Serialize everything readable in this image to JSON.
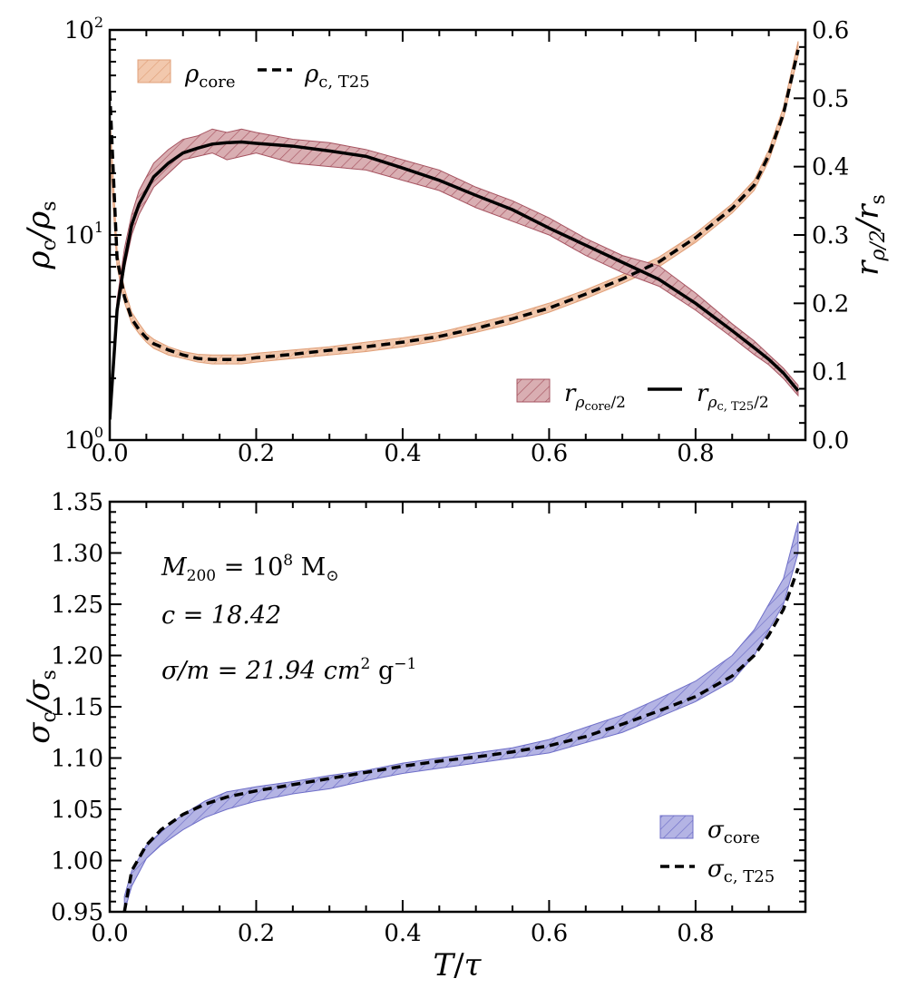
{
  "chart_data": [
    {
      "type": "line",
      "panel": "top",
      "xlim": [
        0.0,
        0.95
      ],
      "x_ticks": [
        "0.0",
        "0.2",
        "0.4",
        "0.6",
        "0.8"
      ],
      "left_axis": {
        "label": "ρc/ρs",
        "scale": "log",
        "ylim": [
          1,
          100
        ],
        "tick_labels": [
          "10^0",
          "10^1",
          "10^2"
        ]
      },
      "right_axis": {
        "label": "rρ/2/rs",
        "ylim": [
          0.0,
          0.6
        ],
        "tick_labels": [
          "0.0",
          "0.1",
          "0.2",
          "0.3",
          "0.4",
          "0.5",
          "0.6"
        ]
      },
      "x": [
        0.0,
        0.01,
        0.02,
        0.03,
        0.04,
        0.05,
        0.06,
        0.08,
        0.1,
        0.12,
        0.14,
        0.16,
        0.18,
        0.2,
        0.25,
        0.3,
        0.35,
        0.4,
        0.45,
        0.5,
        0.55,
        0.6,
        0.65,
        0.7,
        0.75,
        0.8,
        0.85,
        0.88,
        0.9,
        0.92,
        0.94
      ],
      "series": [
        {
          "name": "ρcore",
          "axis": "left",
          "style": "hatched band",
          "color": "#e8a679",
          "lower": [
            25.0,
            7.0,
            4.7,
            3.7,
            3.3,
            3.0,
            2.8,
            2.6,
            2.5,
            2.4,
            2.35,
            2.35,
            2.35,
            2.4,
            2.5,
            2.6,
            2.7,
            2.85,
            3.05,
            3.35,
            3.7,
            4.2,
            4.9,
            5.8,
            7.0,
            9.2,
            12.8,
            16.5,
            23.0,
            37.0,
            75.0
          ],
          "upper": [
            40.0,
            8.4,
            5.5,
            4.2,
            3.7,
            3.3,
            3.1,
            2.85,
            2.7,
            2.62,
            2.6,
            2.6,
            2.6,
            2.65,
            2.75,
            2.85,
            3.0,
            3.15,
            3.35,
            3.7,
            4.1,
            4.65,
            5.4,
            6.4,
            7.8,
            10.2,
            14.2,
            18.5,
            26.0,
            42.0,
            88.0
          ]
        },
        {
          "name": "ρc, T25",
          "axis": "left",
          "style": "dashed",
          "color": "#000000",
          "values": [
            50.0,
            7.7,
            5.0,
            3.9,
            3.45,
            3.15,
            2.95,
            2.75,
            2.6,
            2.5,
            2.47,
            2.47,
            2.47,
            2.52,
            2.62,
            2.74,
            2.85,
            3.0,
            3.2,
            3.5,
            3.9,
            4.4,
            5.15,
            6.1,
            7.4,
            9.7,
            13.5,
            17.5,
            24.5,
            39.0,
            80.0
          ]
        },
        {
          "name": "rρcore/2",
          "axis": "right",
          "style": "hatched band",
          "color": "#a65461",
          "lower": [
            0.03,
            0.18,
            0.25,
            0.3,
            0.33,
            0.35,
            0.37,
            0.39,
            0.41,
            0.415,
            0.42,
            0.41,
            0.415,
            0.42,
            0.405,
            0.4,
            0.395,
            0.38,
            0.365,
            0.34,
            0.32,
            0.3,
            0.27,
            0.245,
            0.225,
            0.19,
            0.15,
            0.125,
            0.11,
            0.09,
            0.065
          ],
          "upper": [
            0.05,
            0.205,
            0.28,
            0.33,
            0.365,
            0.385,
            0.405,
            0.425,
            0.44,
            0.445,
            0.455,
            0.45,
            0.455,
            0.45,
            0.44,
            0.435,
            0.425,
            0.41,
            0.395,
            0.37,
            0.35,
            0.325,
            0.295,
            0.27,
            0.255,
            0.215,
            0.17,
            0.145,
            0.125,
            0.105,
            0.08
          ]
        },
        {
          "name": "rρc, T25/2",
          "axis": "right",
          "style": "solid",
          "color": "#000000",
          "values": [
            0.03,
            0.19,
            0.26,
            0.315,
            0.345,
            0.365,
            0.385,
            0.405,
            0.42,
            0.427,
            0.433,
            0.435,
            0.436,
            0.434,
            0.43,
            0.423,
            0.415,
            0.398,
            0.38,
            0.358,
            0.337,
            0.31,
            0.285,
            0.26,
            0.235,
            0.2,
            0.16,
            0.135,
            0.118,
            0.098,
            0.072
          ]
        }
      ],
      "legend_top_left": [
        "ρcore",
        "ρc, T25"
      ],
      "legend_bottom_right": [
        "rρcore/2",
        "rρc, T25/2"
      ]
    },
    {
      "type": "line",
      "panel": "bottom",
      "xlabel": "T/τ",
      "ylabel": "σc/σs",
      "xlim": [
        0.0,
        0.95
      ],
      "ylim": [
        0.95,
        1.35
      ],
      "x_ticks": [
        "0.0",
        "0.2",
        "0.4",
        "0.6",
        "0.8"
      ],
      "y_ticks": [
        "0.95",
        "1.00",
        "1.05",
        "1.10",
        "1.15",
        "1.20",
        "1.25",
        "1.30",
        "1.35"
      ],
      "x": [
        0.02,
        0.03,
        0.05,
        0.07,
        0.1,
        0.13,
        0.16,
        0.2,
        0.25,
        0.3,
        0.35,
        0.4,
        0.45,
        0.5,
        0.55,
        0.6,
        0.65,
        0.7,
        0.75,
        0.8,
        0.85,
        0.88,
        0.9,
        0.92,
        0.94
      ],
      "series": [
        {
          "name": "σcore",
          "style": "hatched band",
          "color": "#6f6fc8",
          "lower": [
            0.95,
            0.975,
            1.002,
            1.015,
            1.03,
            1.042,
            1.05,
            1.058,
            1.065,
            1.07,
            1.078,
            1.085,
            1.09,
            1.095,
            1.1,
            1.105,
            1.115,
            1.125,
            1.14,
            1.155,
            1.175,
            1.2,
            1.225,
            1.25,
            1.3
          ],
          "upper": [
            0.965,
            0.99,
            1.015,
            1.028,
            1.045,
            1.058,
            1.067,
            1.072,
            1.077,
            1.083,
            1.088,
            1.095,
            1.1,
            1.105,
            1.11,
            1.118,
            1.13,
            1.142,
            1.158,
            1.175,
            1.2,
            1.225,
            1.25,
            1.275,
            1.33
          ]
        },
        {
          "name": "σc, T25",
          "style": "dashed",
          "color": "#000000",
          "values": [
            0.95,
            0.99,
            1.015,
            1.03,
            1.045,
            1.055,
            1.062,
            1.068,
            1.074,
            1.08,
            1.086,
            1.092,
            1.097,
            1.101,
            1.106,
            1.112,
            1.121,
            1.133,
            1.146,
            1.16,
            1.18,
            1.2,
            1.22,
            1.245,
            1.285
          ]
        }
      ],
      "annotations": [
        "M200 = 10^8 M⊙",
        "c = 18.42",
        "σ/m = 21.94 cm² g⁻¹"
      ],
      "legend_bottom_right": [
        "σcore",
        "σc, T25"
      ]
    }
  ],
  "text": {
    "top_y_label": {
      "base": "ρ",
      "sub1": "c",
      "slash": "/",
      "base2": "ρ",
      "sub2": "s"
    },
    "top_y2_label": {
      "base": "r",
      "sub1": "ρ/2",
      "slash": "/",
      "base2": "r",
      "sub2": "s"
    },
    "bottom_y_label": {
      "base": "σ",
      "sub1": "c",
      "slash": "/",
      "base2": "σ",
      "sub2": "s"
    },
    "x_label": {
      "a": "T",
      "slash": "/",
      "b": "τ"
    },
    "ytick_log_base": "10",
    "ytick_log_exps": [
      "0",
      "1",
      "2"
    ],
    "legend_rho_core": {
      "base": "ρ",
      "sub": "core"
    },
    "legend_rho_t25": {
      "base": "ρ",
      "sub": "c, T25"
    },
    "legend_r_core": {
      "base": "r",
      "sub_base": "ρ",
      "sub_sub": "core",
      "tail": "/2"
    },
    "legend_r_t25": {
      "base": "r",
      "sub_base": "ρ",
      "sub_sub": "c, T25",
      "tail": "/2"
    },
    "legend_sigma_core": {
      "base": "σ",
      "sub": "core"
    },
    "legend_sigma_t25": {
      "base": "σ",
      "sub": "c, T25"
    },
    "annot_m200": {
      "base": "M",
      "sub": "200",
      "eq": " = 10",
      "sup": "8",
      "unit": " M",
      "unit_sub": "⊙"
    },
    "annot_c": {
      "text": "c = 18.42"
    },
    "annot_sigma": {
      "pre": "σ/m = 21.94 cm",
      "sup1": "2",
      "mid": " g",
      "sup2": "−1"
    }
  },
  "colors": {
    "rho_core_fill": "#f2c8ad",
    "rho_core_edge": "#e0a07a",
    "r_core_fill": "#d9aeb2",
    "r_core_edge": "#a65461",
    "sigma_core_fill": "#b4b4e4",
    "sigma_core_edge": "#6f6fc8",
    "line": "#000000"
  }
}
